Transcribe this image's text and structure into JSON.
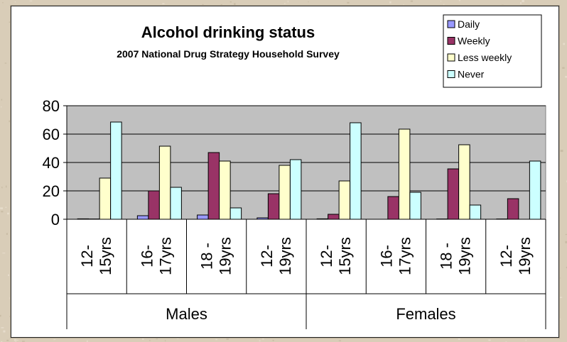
{
  "chart_data": {
    "type": "bar",
    "title": "Alcohol drinking status",
    "subtitle": "2007 National Drug Strategy Household Survey",
    "groups": [
      "Males",
      "Females"
    ],
    "categories": [
      {
        "line1": "12-",
        "line2": "15yrs"
      },
      {
        "line1": "16-",
        "line2": "17yrs"
      },
      {
        "line1": "18 -",
        "line2": "19yrs"
      },
      {
        "line1": "12-",
        "line2": "19yrs"
      },
      {
        "line1": "12-",
        "line2": "15yrs"
      },
      {
        "line1": "16-",
        "line2": "17yrs"
      },
      {
        "line1": "18 -",
        "line2": "19yrs"
      },
      {
        "line1": "12-",
        "line2": "19yrs"
      }
    ],
    "series": [
      {
        "name": "Daily",
        "color": "#9999ff",
        "values": [
          0.3,
          2.5,
          3,
          1,
          0.3,
          0,
          0.2,
          0.2
        ]
      },
      {
        "name": "Weekly",
        "color": "#993366",
        "values": [
          0.2,
          20,
          47,
          18,
          3.5,
          16,
          35.5,
          14.5
        ]
      },
      {
        "name": "Less weekly",
        "color": "#ffffcc",
        "values": [
          29,
          51.5,
          41,
          38,
          27,
          63.5,
          52.5,
          0
        ]
      },
      {
        "name": "Never",
        "color": "#ccffff",
        "values": [
          68.5,
          22.5,
          8,
          42,
          68,
          19,
          10,
          41
        ]
      }
    ],
    "ylim": [
      0,
      80
    ],
    "yticks": [
      0,
      20,
      40,
      60,
      80
    ],
    "grid": true,
    "plot_background": "#c0c0c0",
    "legend_position": "top-right"
  }
}
